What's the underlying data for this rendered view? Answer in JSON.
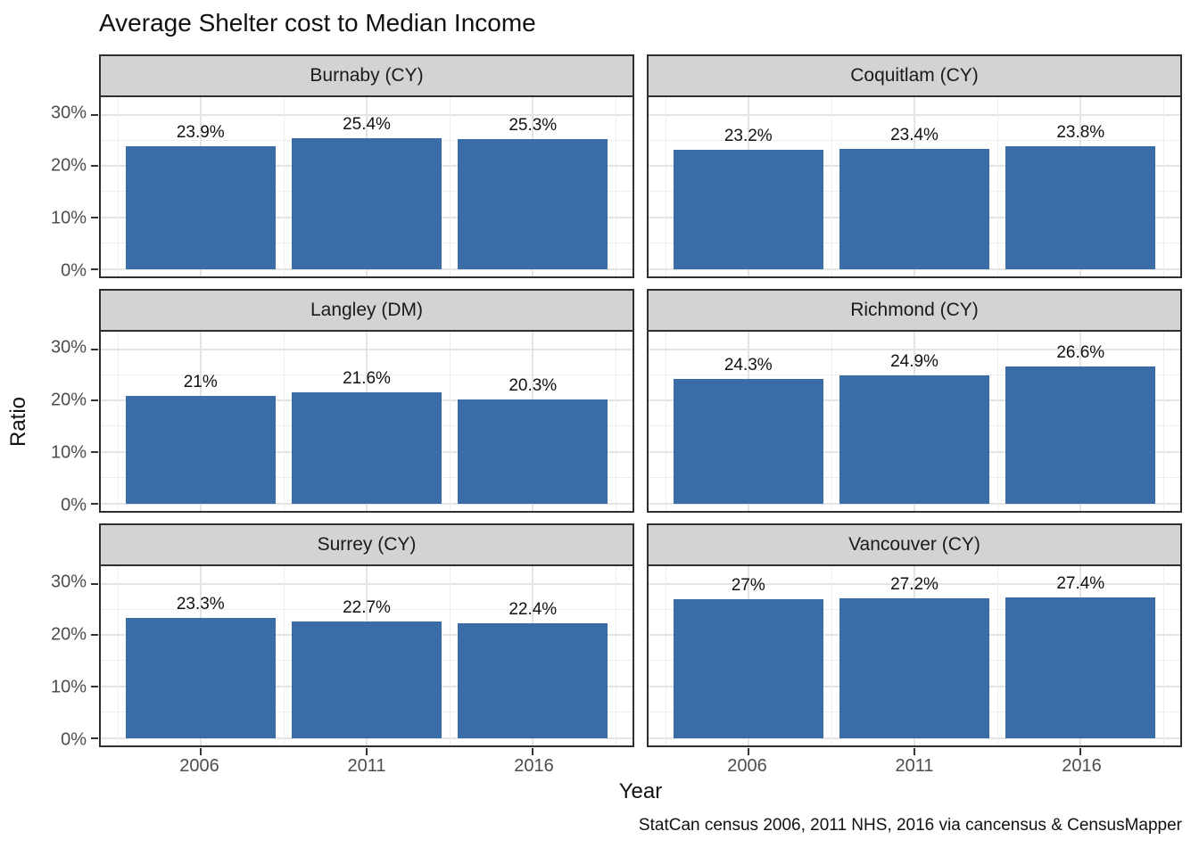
{
  "chart_data": {
    "type": "bar",
    "title": "Average Shelter cost to Median Income",
    "xlabel": "Year",
    "ylabel": "Ratio",
    "caption": "StatCan census 2006, 2011 NHS, 2016 via cancensus & CensusMapper",
    "categories": [
      "2006",
      "2011",
      "2016"
    ],
    "y_ticks": [
      "0%",
      "10%",
      "20%",
      "30%"
    ],
    "ylim": [
      -1.4,
      33.4
    ],
    "bar_color": "#3a6ca5",
    "bar_width_pct": 28.125,
    "facet_layout": "2 columns x 3 rows",
    "legend": "none",
    "grid": {
      "major_y": [
        0,
        10,
        20,
        30
      ],
      "minor_y": [
        5,
        15,
        25
      ],
      "major_x_pct": [
        18.75,
        50,
        81.25
      ],
      "minor_x_pct": [
        3.125,
        34.375,
        65.625,
        96.875
      ]
    },
    "series": [
      {
        "name": "Burnaby (CY)",
        "values": [
          23.9,
          25.4,
          25.3
        ],
        "labels": [
          "23.9%",
          "25.4%",
          "25.3%"
        ]
      },
      {
        "name": "Coquitlam (CY)",
        "values": [
          23.2,
          23.4,
          23.8
        ],
        "labels": [
          "23.2%",
          "23.4%",
          "23.8%"
        ]
      },
      {
        "name": "Langley (DM)",
        "values": [
          21.0,
          21.6,
          20.3
        ],
        "labels": [
          "21%",
          "21.6%",
          "20.3%"
        ]
      },
      {
        "name": "Richmond (CY)",
        "values": [
          24.3,
          24.9,
          26.6
        ],
        "labels": [
          "24.3%",
          "24.9%",
          "26.6%"
        ]
      },
      {
        "name": "Surrey (CY)",
        "values": [
          23.3,
          22.7,
          22.4
        ],
        "labels": [
          "23.3%",
          "22.7%",
          "22.4%"
        ]
      },
      {
        "name": "Vancouver (CY)",
        "values": [
          27.0,
          27.2,
          27.4
        ],
        "labels": [
          "27%",
          "27.2%",
          "27.4%"
        ]
      }
    ]
  }
}
